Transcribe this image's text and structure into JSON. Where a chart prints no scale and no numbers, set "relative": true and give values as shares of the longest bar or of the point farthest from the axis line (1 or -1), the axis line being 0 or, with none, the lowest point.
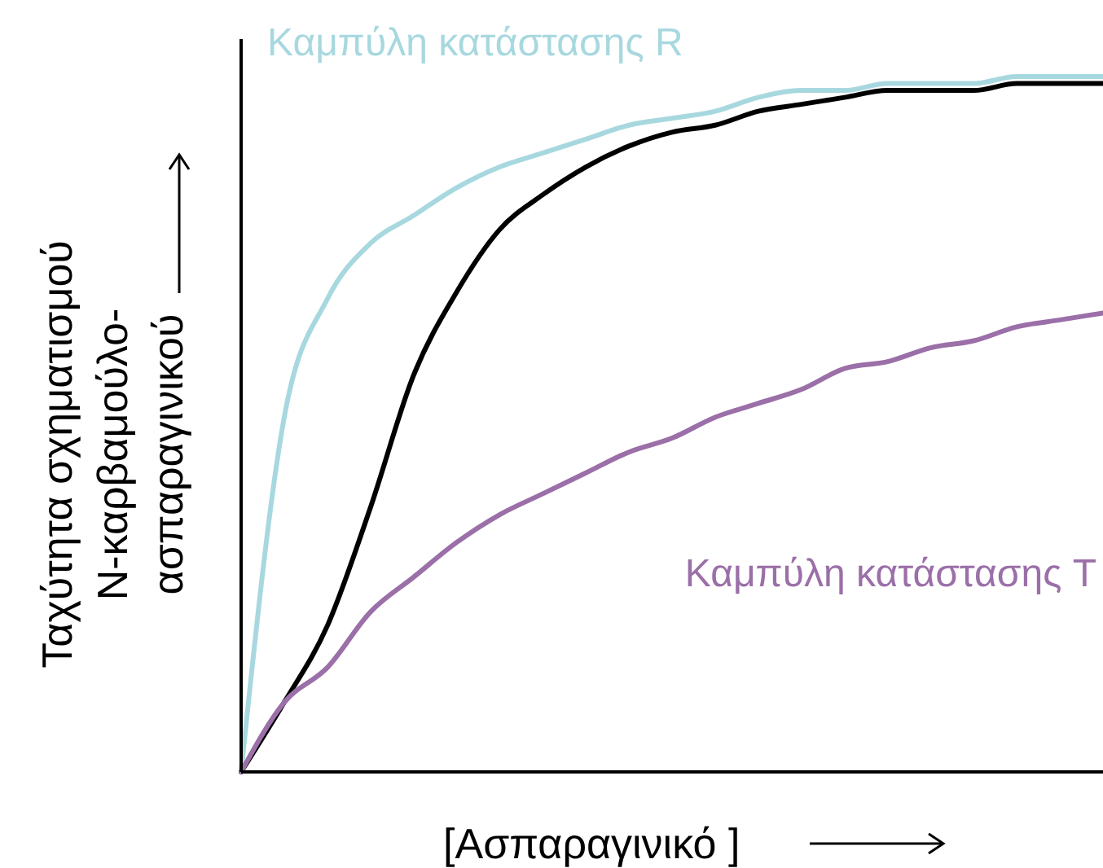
{
  "chart_data": {
    "type": "line",
    "relative": true,
    "xlabel": "[Ασπαραγινικό ]",
    "ylabel": "Ταχύτητα σχηματισμού N-καρβαμούλο-ασπαραγινικού",
    "line_style": "solid",
    "categories": [
      null,
      null,
      null,
      null,
      null,
      null,
      null,
      null,
      null,
      null,
      null,
      null,
      null,
      null,
      null,
      null,
      null,
      null,
      null,
      null,
      null
    ],
    "series": [
      {
        "name": "Καμπύλη κατάστασης R",
        "color": "#a8d8df",
        "values": [
          0,
          0.51,
          0.68,
          0.76,
          0.8,
          0.84,
          0.87,
          0.89,
          0.91,
          0.93,
          0.94,
          0.95,
          0.97,
          0.98,
          0.98,
          0.99,
          0.99,
          0.99,
          1,
          1,
          1
        ]
      },
      {
        "color": "#000000",
        "values": [
          0,
          0.1,
          0.21,
          0.38,
          0.57,
          0.69,
          0.78,
          0.83,
          0.87,
          0.9,
          0.92,
          0.93,
          0.95,
          0.96,
          0.97,
          0.98,
          0.98,
          0.98,
          0.99,
          0.99,
          0.99
        ]
      },
      {
        "name": "Καμπύλη κατάστασης T",
        "color": "#9b6fa8",
        "values": [
          0,
          0.1,
          0.15,
          0.23,
          0.28,
          0.33,
          0.37,
          0.4,
          0.43,
          0.46,
          0.48,
          0.51,
          0.53,
          0.55,
          0.58,
          0.59,
          0.61,
          0.62,
          0.64,
          0.65,
          0.66
        ]
      }
    ]
  }
}
